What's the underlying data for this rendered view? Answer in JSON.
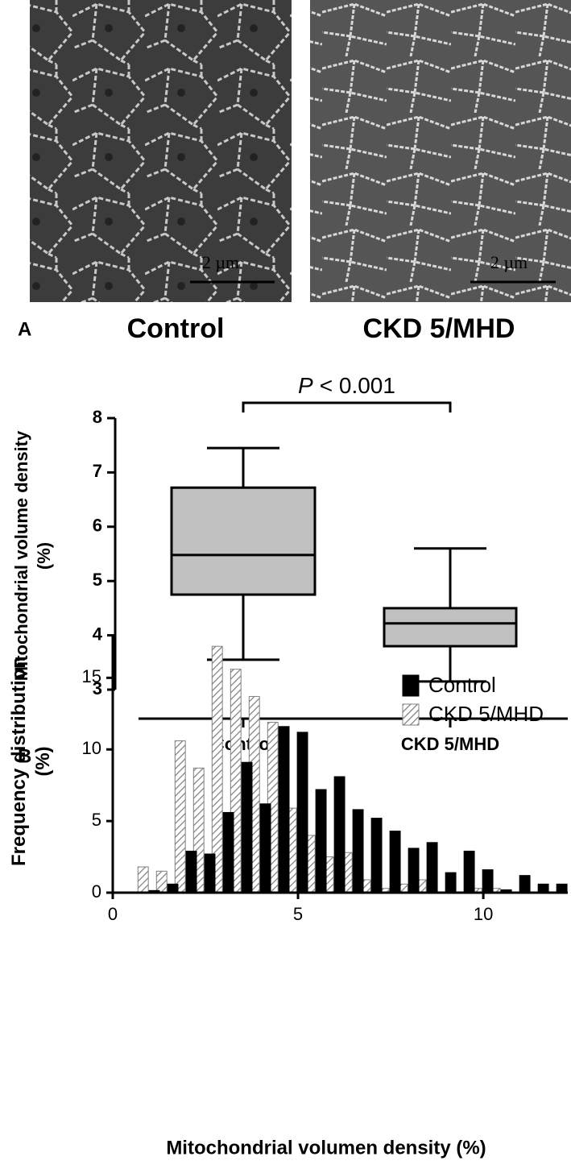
{
  "panel_a": {
    "label": "A",
    "images": [
      {
        "caption": "Control",
        "scale_bar": "2 µm"
      },
      {
        "caption": "CKD 5/MHD",
        "scale_bar": "2 µm"
      }
    ]
  },
  "chart_data": [
    {
      "type": "box",
      "ylabel": [
        "Mitochondrial volume density",
        "(%)"
      ],
      "annotation": {
        "italic": "P",
        "text": "< 0.001"
      },
      "categories": [
        "Control",
        "CKD 5/MHD"
      ],
      "color": "#c0c0c0",
      "whisker_low": [
        3.55,
        3.15
      ],
      "q1": [
        4.75,
        3.8
      ],
      "median": [
        5.48,
        4.22
      ],
      "q3": [
        6.72,
        4.5
      ],
      "whisker_high": [
        7.45,
        5.6
      ],
      "ylim": [
        3,
        8
      ],
      "yticks": [
        3,
        4,
        5,
        6,
        7,
        8
      ]
    },
    {
      "type": "grouped-histogram",
      "panel_label": "B",
      "xlabel": "Mitochondrial volumen density (%)",
      "ylabel": [
        "Frequency distribution",
        "(%)"
      ],
      "x": [
        1,
        1.5,
        2,
        2.5,
        3,
        3.5,
        4,
        4.5,
        5,
        5.5,
        6,
        6.5,
        7,
        7.5,
        8,
        8.5,
        9,
        9.5,
        10,
        10.5,
        11,
        11.5,
        12
      ],
      "series": [
        {
          "name": "Control",
          "color": "#000000",
          "pattern": "solid",
          "values": [
            0.15,
            0.6,
            2.9,
            2.7,
            5.6,
            9.1,
            6.2,
            11.6,
            11.2,
            7.2,
            8.1,
            5.8,
            5.2,
            4.3,
            3.1,
            3.5,
            1.4,
            2.9,
            1.6,
            0.2,
            1.2,
            0.6,
            0.6
          ]
        },
        {
          "name": "CKD 5/MHD",
          "color": "#808080",
          "pattern": "hatch",
          "values": [
            1.8,
            1.5,
            10.6,
            8.7,
            17.2,
            15.6,
            13.7,
            11.9,
            5.9,
            4.0,
            2.5,
            2.8,
            0.9,
            0.3,
            0.6,
            0.9,
            0,
            0,
            0.3,
            0.3,
            0,
            0,
            0
          ]
        }
      ],
      "xlim": [
        0,
        12.28
      ],
      "xticks": [
        0,
        5,
        10
      ],
      "ylim": [
        0,
        18
      ],
      "yticks": [
        0,
        5,
        10,
        15
      ],
      "legend": "upper right"
    }
  ]
}
